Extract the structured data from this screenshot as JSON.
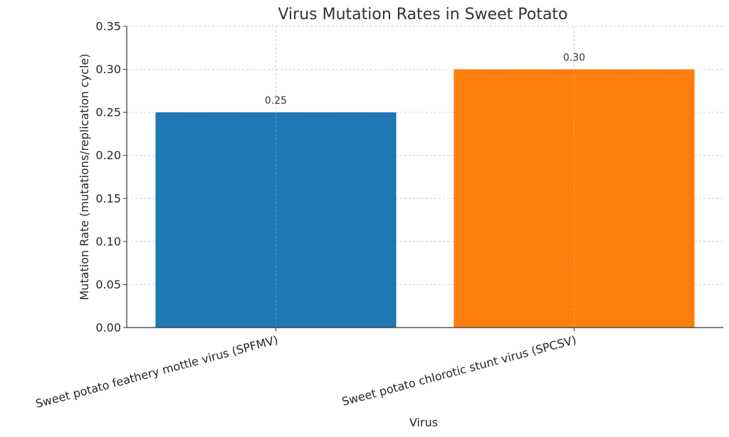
{
  "chart_data": {
    "type": "bar",
    "title": "Virus Mutation Rates in Sweet Potato",
    "xlabel": "Virus",
    "ylabel": "Mutation Rate (mutations/replication cycle)",
    "categories": [
      "Sweet potato feathery mottle virus (SPFMV)",
      "Sweet potato chlorotic stunt virus (SPCSV)"
    ],
    "values": [
      0.25,
      0.3
    ],
    "data_labels": [
      "0.25",
      "0.30"
    ],
    "colors": [
      "#1f77b4",
      "#ff7f0e"
    ],
    "ylim": [
      0,
      0.35
    ],
    "yticks": [
      0.0,
      0.05,
      0.1,
      0.15,
      0.2,
      0.25,
      0.3,
      0.35
    ],
    "ytick_labels": [
      "0.00",
      "0.05",
      "0.10",
      "0.15",
      "0.20",
      "0.25",
      "0.30",
      "0.35"
    ],
    "grid": true,
    "legend": "none"
  }
}
